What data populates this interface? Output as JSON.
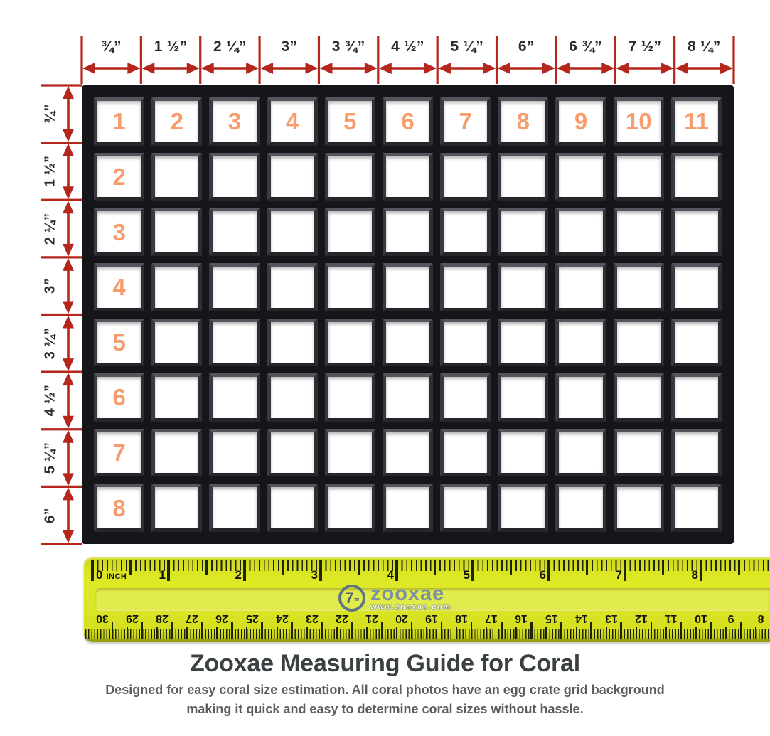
{
  "header": {
    "top_measurements": [
      "¾”",
      "1 ½”",
      "2 ¼”",
      "3”",
      "3 ¾”",
      "4 ½”",
      "5 ¼”",
      "6”",
      "6 ¾”",
      "7 ½”",
      "8 ¼”"
    ],
    "left_measurements": [
      "¾”",
      "1 ½”",
      "2 ¼”",
      "3”",
      "3 ¾”",
      "4 ½”",
      "5 ¼”",
      "6”"
    ]
  },
  "grid": {
    "rows": 8,
    "columns": 11,
    "column_numbers": [
      "1",
      "2",
      "3",
      "4",
      "5",
      "6",
      "7",
      "8",
      "9",
      "10",
      "11"
    ],
    "row_numbers": [
      "1",
      "2",
      "3",
      "4",
      "5",
      "6",
      "7",
      "8"
    ]
  },
  "ruler": {
    "inch_unit_label": "INCH",
    "inch_numbers": [
      "0",
      "1",
      "2",
      "3",
      "4",
      "5",
      "6",
      "7",
      "8"
    ],
    "cm_numbers": [
      "30",
      "29",
      "28",
      "27",
      "26",
      "25",
      "24",
      "23",
      "22",
      "21",
      "20",
      "19",
      "18",
      "17",
      "16",
      "15",
      "14",
      "13",
      "12",
      "11",
      "10",
      "9",
      "8"
    ],
    "brand": "zooxae",
    "brand_url": "www.zooxae.com",
    "brand_mark": "7",
    "brand_mark_lines": "≡"
  },
  "footer": {
    "title": "Zooxae Measuring Guide for Coral",
    "subtitle_line1": "Designed for easy coral size estimation. All coral photos have an egg crate grid background",
    "subtitle_line2": "making it quick and easy to determine coral sizes without hassle."
  },
  "colors": {
    "arrow_red": "#b5271d",
    "cell_number_orange": "#f89c6e",
    "grid_black": "#16161a",
    "ruler_yellow": "#d9e321",
    "tick_dark": "#1e2506",
    "title_gray": "#3b4043",
    "subtitle_gray": "#595d60",
    "logo_slate": "#7b91a0"
  }
}
